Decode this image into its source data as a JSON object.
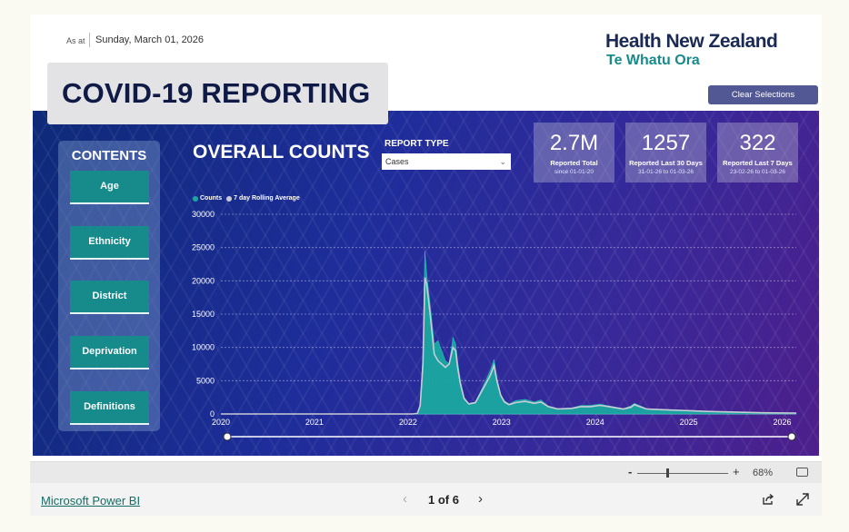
{
  "header": {
    "as_at_label": "As at",
    "as_at_date": "Sunday, March 01, 2026",
    "brand_title": "Health New Zealand",
    "brand_subtitle": "Te Whatu Ora",
    "report_title": "COVID-19 REPORTING",
    "clear_button": "Clear Selections"
  },
  "contents": {
    "title": "CONTENTS",
    "items": [
      "Age",
      "Ethnicity",
      "District",
      "Deprivation",
      "Definitions"
    ]
  },
  "main": {
    "section_title": "OVERALL COUNTS",
    "report_type_label": "REPORT TYPE",
    "report_type_value": "Cases",
    "kpis": [
      {
        "value": "2.7M",
        "label": "Reported Total",
        "sub": "since 01-01-20"
      },
      {
        "value": "1257",
        "label": "Reported Last 30 Days",
        "sub": "31-01-26 to 01-03-26"
      },
      {
        "value": "322",
        "label": "Reported Last 7 Days",
        "sub": "23-02-26 to 01-03-26"
      }
    ]
  },
  "colors": {
    "counts": "#1aa8a0",
    "rolling": "#c9ccd6",
    "accent": "#178a8c",
    "brand": "#1b2a55"
  },
  "chart_data": {
    "type": "area",
    "legend": [
      "Counts",
      "7 day Rolling Average"
    ],
    "legend_position": "top-left",
    "x_ticks": [
      "2020",
      "2021",
      "2022",
      "2023",
      "2024",
      "2025",
      "2026"
    ],
    "y_ticks": [
      "0",
      "5000",
      "10000",
      "15000",
      "20000",
      "25000",
      "30000"
    ],
    "xlim": [
      2020,
      2026.15
    ],
    "ylim": [
      0,
      30000
    ],
    "grid": true,
    "series": [
      {
        "name": "Counts",
        "x": [
          2020.0,
          2021.0,
          2022.05,
          2022.1,
          2022.13,
          2022.16,
          2022.18,
          2022.2,
          2022.24,
          2022.28,
          2022.32,
          2022.36,
          2022.4,
          2022.44,
          2022.48,
          2022.51,
          2022.53,
          2022.56,
          2022.6,
          2022.65,
          2022.72,
          2022.78,
          2022.83,
          2022.88,
          2022.92,
          2022.95,
          2022.99,
          2023.03,
          2023.08,
          2023.15,
          2023.25,
          2023.35,
          2023.42,
          2023.5,
          2023.6,
          2023.75,
          2023.85,
          2023.95,
          2024.05,
          2024.15,
          2024.3,
          2024.38,
          2024.42,
          2024.47,
          2024.55,
          2024.7,
          2024.9,
          2025.2,
          2025.5,
          2025.8,
          2026.15
        ],
        "y": [
          0,
          0,
          0,
          100,
          1500,
          9000,
          24500,
          21000,
          16000,
          10500,
          11000,
          9500,
          8000,
          7500,
          11500,
          10500,
          8000,
          5000,
          2500,
          1600,
          1800,
          3500,
          5000,
          6500,
          8200,
          5500,
          3000,
          2000,
          1500,
          2000,
          2200,
          1800,
          2100,
          1200,
          800,
          900,
          1300,
          1300,
          1500,
          1200,
          800,
          1200,
          1600,
          1300,
          800,
          700,
          600,
          400,
          300,
          200,
          150
        ]
      },
      {
        "name": "7 day Rolling Average",
        "x": [
          2020.0,
          2021.0,
          2022.05,
          2022.1,
          2022.13,
          2022.16,
          2022.18,
          2022.2,
          2022.24,
          2022.28,
          2022.32,
          2022.36,
          2022.4,
          2022.44,
          2022.48,
          2022.51,
          2022.53,
          2022.56,
          2022.6,
          2022.65,
          2022.72,
          2022.78,
          2022.83,
          2022.88,
          2022.92,
          2022.95,
          2022.99,
          2023.03,
          2023.08,
          2023.15,
          2023.25,
          2023.35,
          2023.42,
          2023.5,
          2023.6,
          2023.75,
          2023.85,
          2023.95,
          2024.05,
          2024.15,
          2024.3,
          2024.38,
          2024.42,
          2024.47,
          2024.55,
          2024.7,
          2024.9,
          2025.2,
          2025.5,
          2025.8,
          2026.15
        ],
        "y": [
          0,
          0,
          0,
          80,
          1200,
          7500,
          20500,
          19500,
          14500,
          9000,
          8000,
          7500,
          7000,
          7500,
          10000,
          9500,
          7000,
          4500,
          2300,
          1500,
          1700,
          3200,
          4500,
          5800,
          7300,
          5000,
          2800,
          1800,
          1400,
          1700,
          1900,
          1600,
          1800,
          1100,
          750,
          850,
          1100,
          1100,
          1300,
          1100,
          750,
          1000,
          1400,
          1150,
          750,
          650,
          550,
          380,
          280,
          180,
          140
        ]
      }
    ]
  },
  "footer": {
    "zoom_minus": "-",
    "zoom_plus": "+",
    "zoom_level": "68%",
    "link": "Microsoft Power BI",
    "page_prev": "‹",
    "page_indicator": "1 of 6",
    "page_next": "›"
  }
}
